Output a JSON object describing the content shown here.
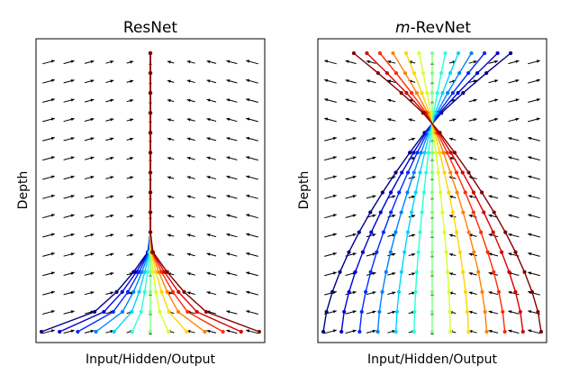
{
  "chart_data": [
    {
      "type": "line",
      "title": "ResNet",
      "title_italic_prefix": "",
      "xlabel": "Input/Hidden/Output",
      "ylabel": "Depth",
      "xlim": [
        -1.05,
        1.05
      ],
      "ylim": [
        0,
        1
      ],
      "grid": false,
      "legend": "none",
      "colormap": "jet",
      "series_count": 13,
      "layers": 15,
      "input_spread": 1.0,
      "transform": "resnet_contract",
      "quiver": {
        "cols": 11,
        "rows": 15,
        "field": "contract_to_center"
      }
    },
    {
      "type": "line",
      "title": "-RevNet",
      "title_italic_prefix": "m",
      "xlabel": "Input/Hidden/Output",
      "ylabel": "Depth",
      "xlim": [
        -1.05,
        1.05
      ],
      "ylim": [
        0,
        1
      ],
      "grid": false,
      "legend": "none",
      "colormap": "jet",
      "series_count": 13,
      "layers": 15,
      "input_spread": 1.0,
      "transform": "momentum_cross",
      "quiver": {
        "cols": 11,
        "rows": 15,
        "field": "contract_then_expand"
      }
    }
  ]
}
